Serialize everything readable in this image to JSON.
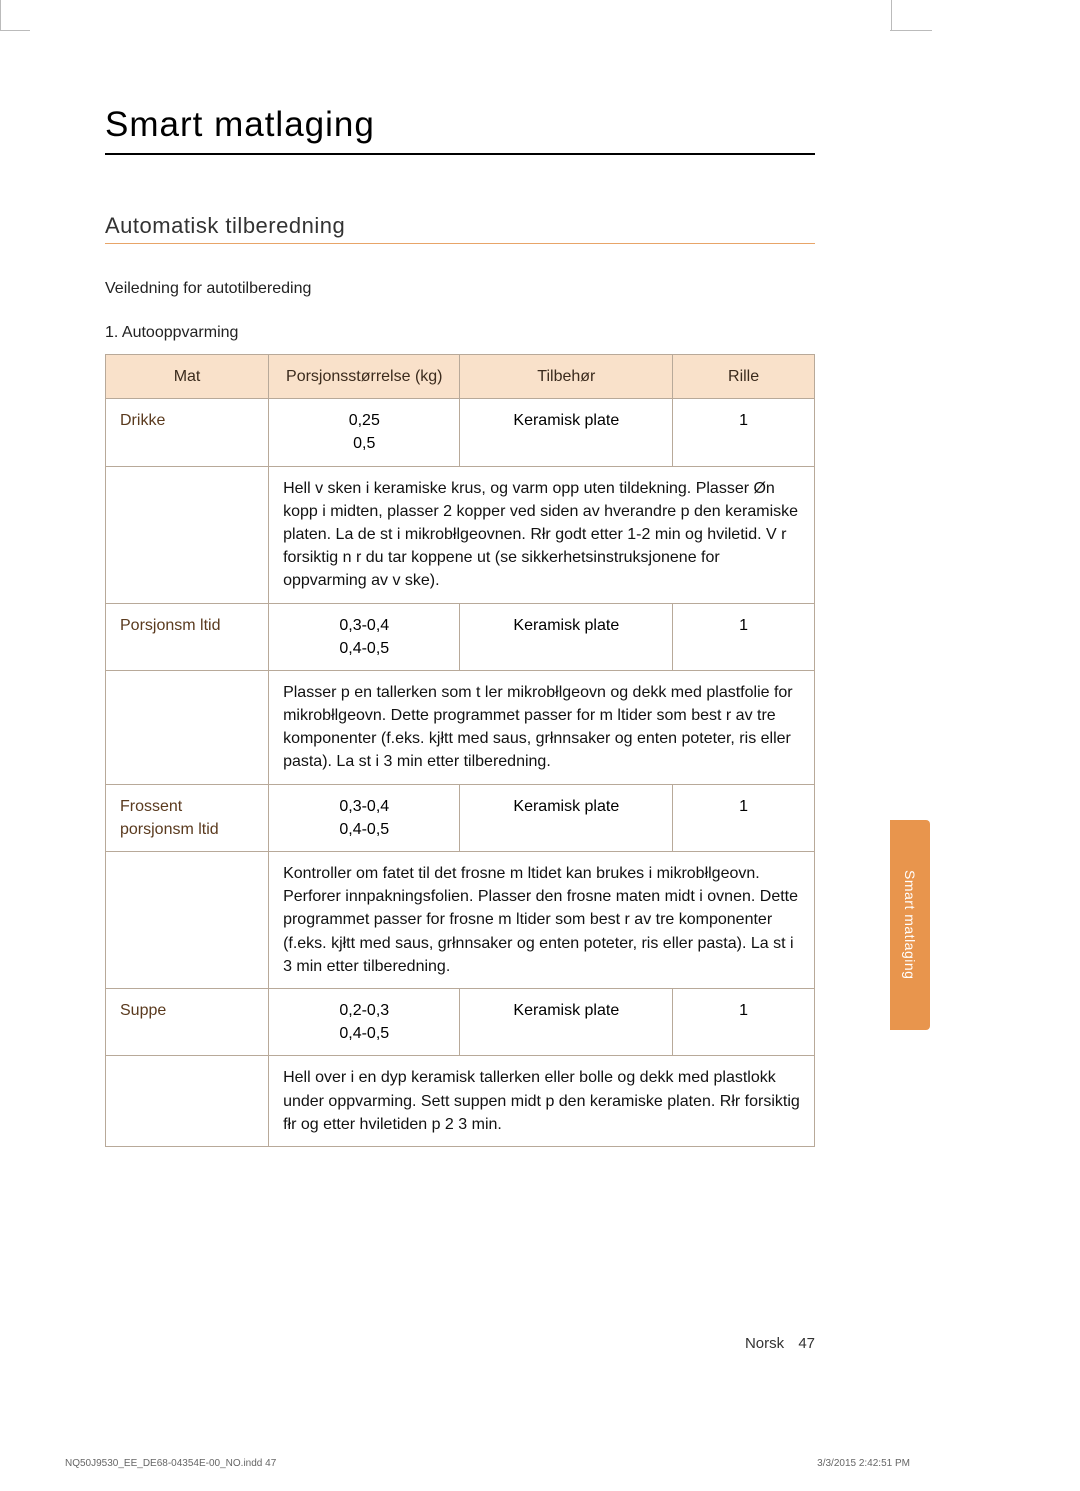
{
  "page": {
    "title": "Smart matlaging",
    "section_heading": "Automatisk tilberedning",
    "intro": "Veiledning for autotilbereding",
    "subheading": "1. Autooppvarming",
    "side_tab": "Smart matlaging",
    "footer_lang": "Norsk",
    "footer_page": "47",
    "print_left": "NQ50J9530_EE_DE68-04354E-00_NO.indd   47",
    "print_right": "3/3/2015   2:42:51 PM"
  },
  "table": {
    "headers": {
      "mat": "Mat",
      "por": "Porsjonsstørrelse (kg)",
      "til": "Tilbehør",
      "ril": "Rille"
    },
    "rows": [
      {
        "name": "Drikke",
        "portion": "0,25\n0,5",
        "accessory": "Keramisk plate",
        "rack": "1",
        "desc": "Hell v sken i keramiske krus, og varm opp uten tildekning. Plasser Øn kopp i midten, plasser 2 kopper ved siden av hverandre p den keramiske platen. La de st i mikrobłlgeovnen. Rłr godt etter 1-2 min og hviletid. V r forsiktig n r du tar koppene ut (se sikkerhetsinstruksjonene for oppvarming av v ske)."
      },
      {
        "name": "Porsjonsm ltid",
        "portion": "0,3-0,4\n0,4-0,5",
        "accessory": "Keramisk plate",
        "rack": "1",
        "desc": "Plasser p en tallerken som t ler mikrobłlgeovn og dekk med plastfolie for mikrobłlgeovn. Dette programmet passer for m ltider som best r av tre komponenter (f.eks. kjłtt med saus, grłnnsaker og enten poteter, ris eller pasta). La st i 3 min etter tilberedning."
      },
      {
        "name": "Frossent porsjonsm ltid",
        "portion": "0,3-0,4\n0,4-0,5",
        "accessory": "Keramisk plate",
        "rack": "1",
        "desc": "Kontroller om fatet til det frosne m ltidet kan brukes i mikrobłlgeovn. Perforer innpakningsfolien. Plasser den frosne maten midt i ovnen. Dette programmet passer for frosne m ltider som best r av tre komponenter (f.eks. kjłtt med saus, grłnnsaker og enten poteter, ris eller pasta). La st i 3 min etter tilberedning."
      },
      {
        "name": "Suppe",
        "portion": "0,2-0,3\n0,4-0,5",
        "accessory": "Keramisk plate",
        "rack": "1",
        "desc": "Hell over i en dyp keramisk tallerken eller bolle og dekk med plastlokk under oppvarming. Sett suppen midt p den keramiske platen. Rłr forsiktig fłr og etter hviletiden p 2 3 min."
      }
    ]
  }
}
